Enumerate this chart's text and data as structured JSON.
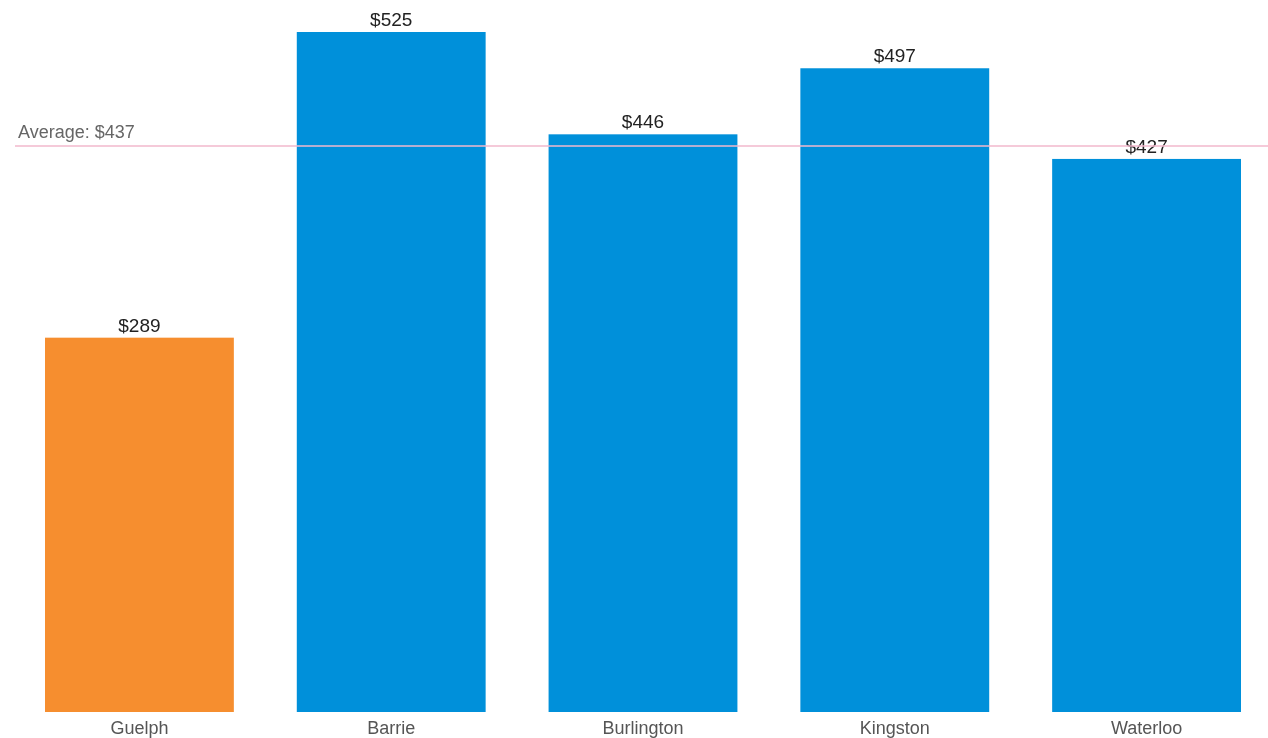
{
  "chart_data": {
    "type": "bar",
    "categories": [
      "Guelph",
      "Barrie",
      "Burlington",
      "Kingston",
      "Waterloo"
    ],
    "values": [
      289,
      525,
      446,
      497,
      427
    ],
    "colors": [
      "#f68e2f",
      "#0090da",
      "#0090da",
      "#0090da",
      "#0090da"
    ],
    "value_labels": [
      "$289",
      "$525",
      "$446",
      "$497",
      "$427"
    ],
    "ref_lines": [
      {
        "axis": "y",
        "value": 437,
        "label": "Average: $437",
        "color": "#f2b8cc"
      }
    ]
  }
}
